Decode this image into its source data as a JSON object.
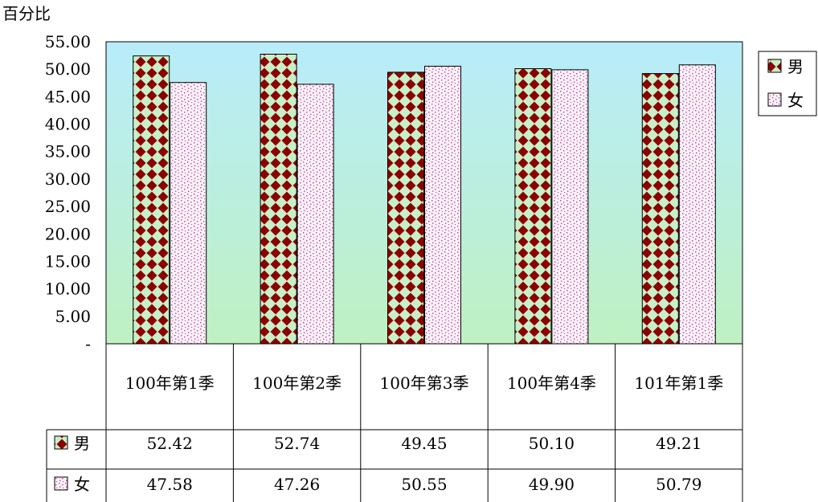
{
  "chart_data": {
    "type": "bar",
    "title": "",
    "ylabel": "百分比",
    "xlabel": "",
    "ylim": [
      0,
      55
    ],
    "yticks": [
      "-",
      "5.00",
      "10.00",
      "15.00",
      "20.00",
      "25.00",
      "30.00",
      "35.00",
      "40.00",
      "45.00",
      "50.00",
      "55.00"
    ],
    "categories": [
      "100年第1季",
      "100年第2季",
      "100年第3季",
      "100年第4季",
      "101年第1季"
    ],
    "series": [
      {
        "name": "男",
        "values": [
          52.42,
          52.74,
          49.45,
          50.1,
          49.21
        ],
        "labels": [
          "52.42",
          "52.74",
          "49.45",
          "50.10",
          "49.21"
        ],
        "color": "#8b0000"
      },
      {
        "name": "女",
        "values": [
          47.58,
          47.26,
          50.55,
          49.9,
          50.79
        ],
        "labels": [
          "47.58",
          "47.26",
          "50.55",
          "49.90",
          "50.79"
        ],
        "color": "#b05fa0"
      }
    ],
    "legend": "right",
    "grid": false,
    "data_table": true,
    "plot_background": [
      "#b8ecfa",
      "#bff1c2"
    ]
  }
}
